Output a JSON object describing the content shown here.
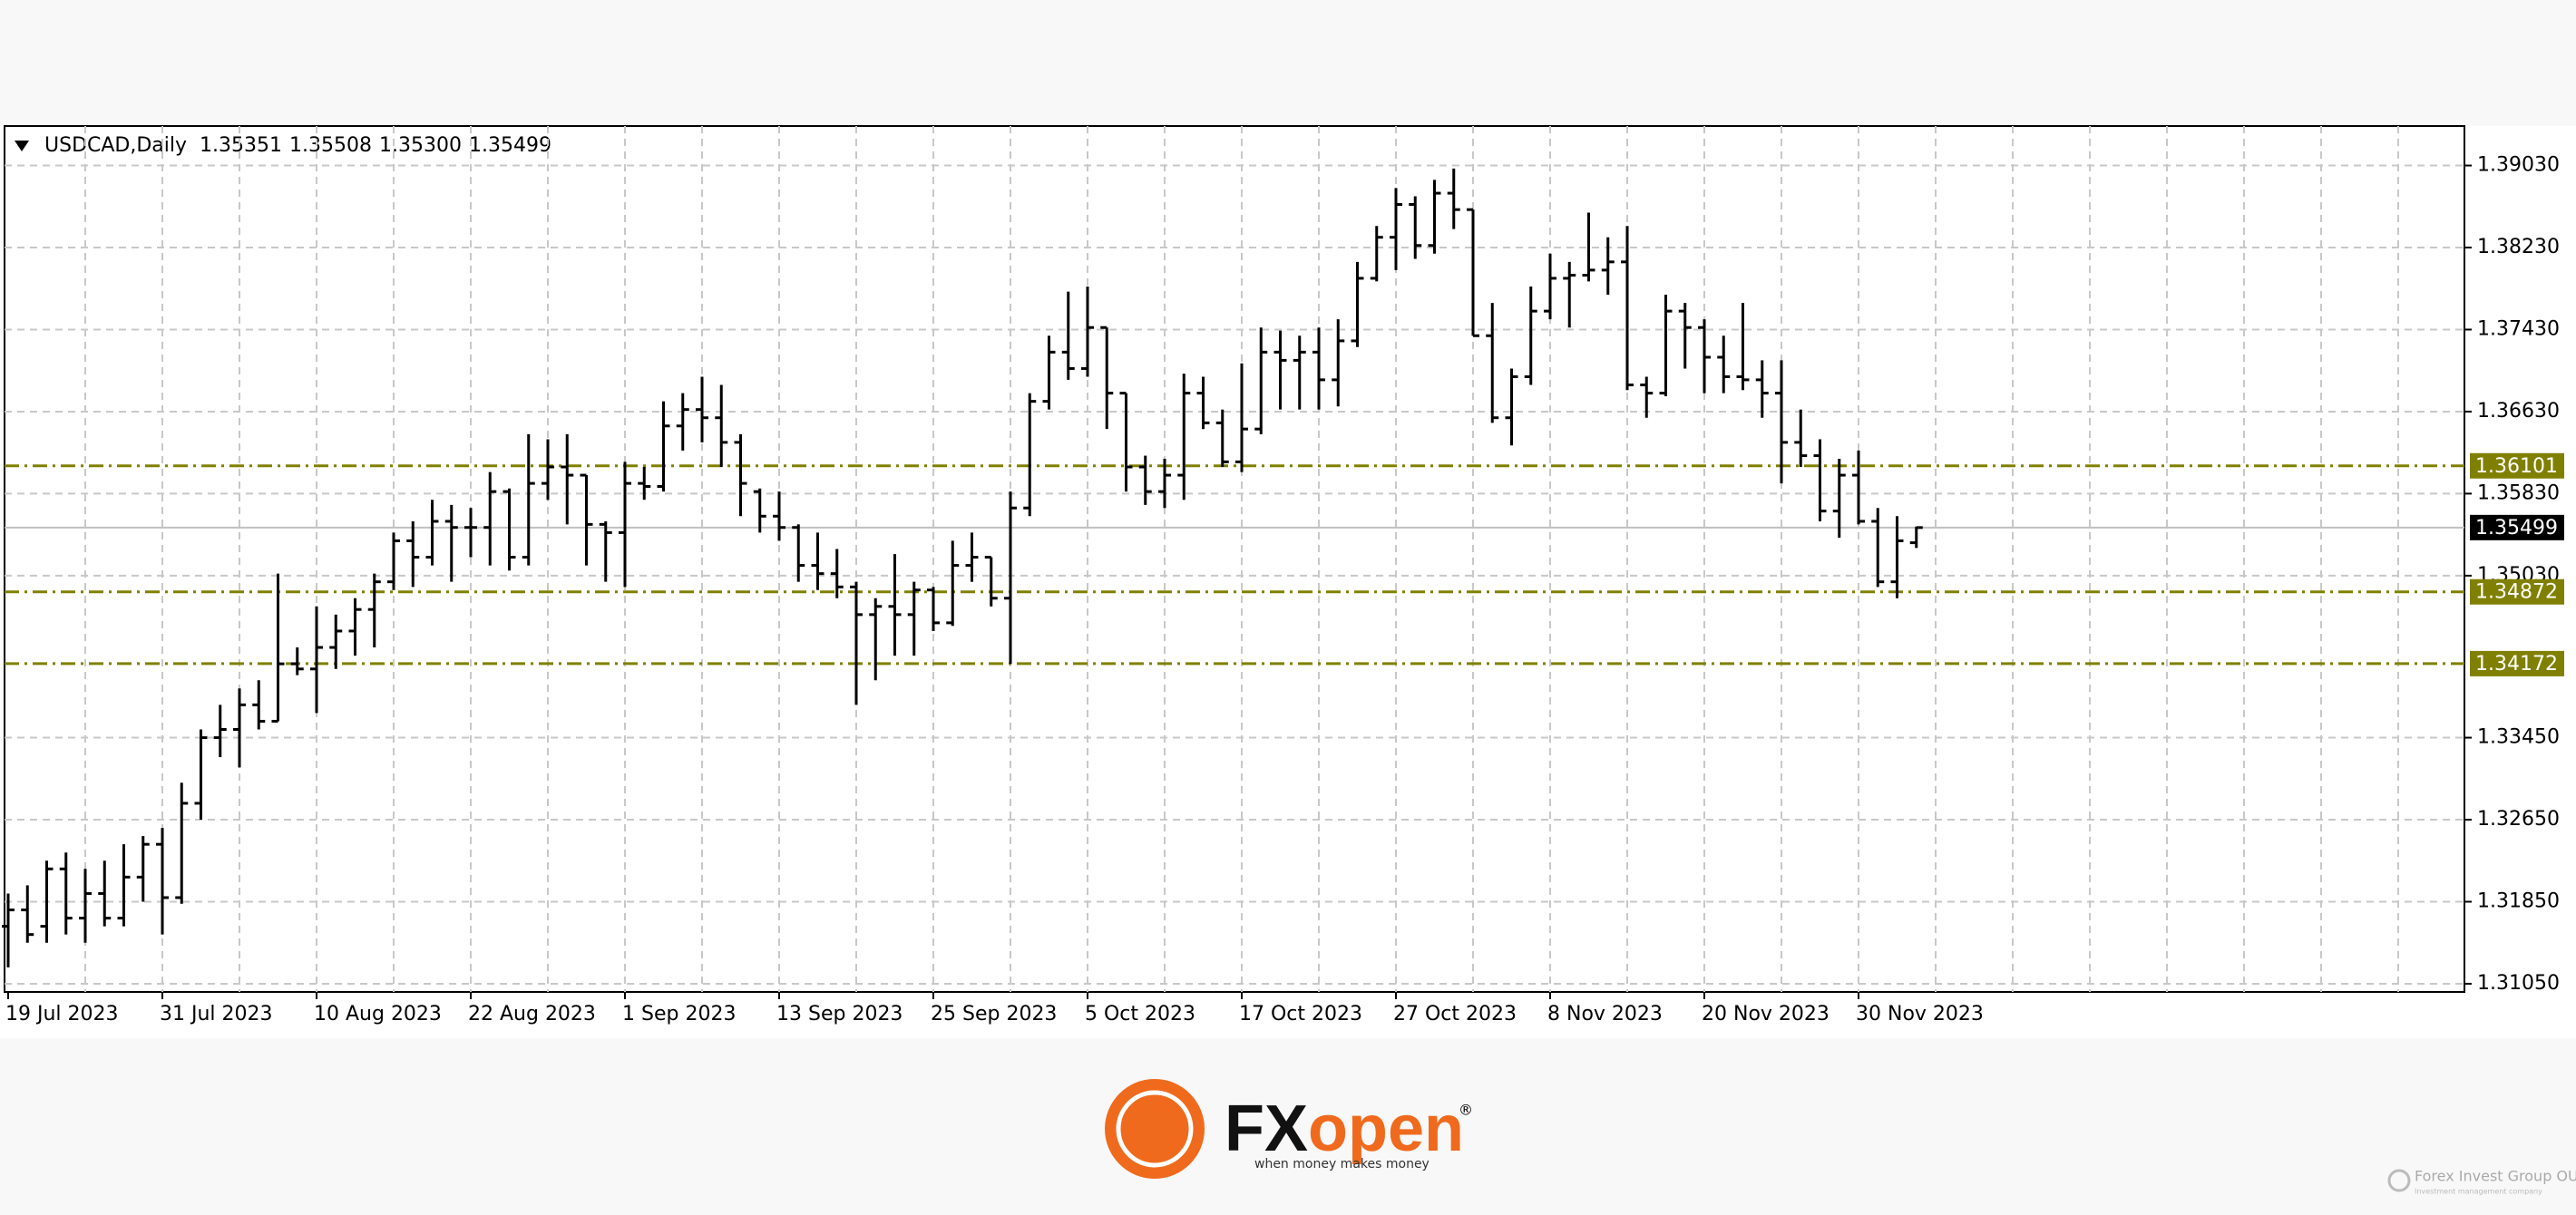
{
  "chart_data": {
    "type": "ohlc",
    "title": "USDCAD,Daily",
    "last_labels": [
      "1.35351",
      "1.35508",
      "1.35300",
      "1.35499"
    ],
    "categories": [
      "19 Jul 2023",
      null,
      null,
      null,
      null,
      null,
      null,
      null,
      "31 Jul 2023",
      null,
      null,
      null,
      null,
      null,
      null,
      null,
      "10 Aug 2023",
      null,
      null,
      null,
      null,
      null,
      null,
      null,
      "22 Aug 2023",
      null,
      null,
      null,
      null,
      null,
      null,
      null,
      "1 Sep 2023",
      null,
      null,
      null,
      null,
      null,
      null,
      null,
      "13 Sep 2023",
      null,
      null,
      null,
      null,
      null,
      null,
      null,
      "25 Sep 2023",
      null,
      null,
      null,
      null,
      null,
      null,
      null,
      "5 Oct 2023",
      null,
      null,
      null,
      null,
      null,
      null,
      null,
      "17 Oct 2023",
      null,
      null,
      null,
      null,
      null,
      null,
      null,
      "27 Oct 2023",
      null,
      null,
      null,
      null,
      null,
      null,
      null,
      "8 Nov 2023",
      null,
      null,
      null,
      null,
      null,
      null,
      null,
      "20 Nov 2023",
      null,
      null,
      null,
      null,
      null,
      null,
      null,
      "30 Nov 2023",
      null,
      null,
      null
    ],
    "ohlc": [
      [
        1.3161,
        1.3193,
        1.3121,
        1.3177
      ],
      [
        1.3177,
        1.3201,
        1.3145,
        1.3153
      ],
      [
        1.3161,
        1.3225,
        1.3145,
        1.3217
      ],
      [
        1.3217,
        1.3233,
        1.3153,
        1.3169
      ],
      [
        1.3169,
        1.3217,
        1.3145,
        1.3193
      ],
      [
        1.3193,
        1.3225,
        1.3161,
        1.3169
      ],
      [
        1.3169,
        1.3241,
        1.3161,
        1.3209
      ],
      [
        1.3209,
        1.3249,
        1.3185,
        1.3241
      ],
      [
        1.3241,
        1.3257,
        1.3153,
        1.3189
      ],
      [
        1.3189,
        1.3301,
        1.3183,
        1.3281
      ],
      [
        1.3281,
        1.3353,
        1.3265,
        1.3345
      ],
      [
        1.3345,
        1.3377,
        1.3326,
        1.3353
      ],
      [
        1.3353,
        1.3393,
        1.3316,
        1.3377
      ],
      [
        1.3377,
        1.3401,
        1.3353,
        1.3361
      ],
      [
        1.3361,
        1.3505,
        1.3361,
        1.3417
      ],
      [
        1.3417,
        1.3433,
        1.3406,
        1.3412
      ],
      [
        1.3412,
        1.3473,
        1.3369,
        1.3433
      ],
      [
        1.3433,
        1.3465,
        1.3412,
        1.3449
      ],
      [
        1.3449,
        1.3481,
        1.3425,
        1.347
      ],
      [
        1.347,
        1.3505,
        1.3433,
        1.3497
      ],
      [
        1.3497,
        1.3545,
        1.3489,
        1.3537
      ],
      [
        1.3537,
        1.3556,
        1.3492,
        1.3521
      ],
      [
        1.3521,
        1.3577,
        1.3513,
        1.3556
      ],
      [
        1.3556,
        1.3572,
        1.3497,
        1.355
      ],
      [
        1.355,
        1.3569,
        1.3521,
        1.355
      ],
      [
        1.355,
        1.3604,
        1.3513,
        1.3585
      ],
      [
        1.3585,
        1.3588,
        1.3508,
        1.3521
      ],
      [
        1.3521,
        1.3641,
        1.3513,
        1.3593
      ],
      [
        1.3593,
        1.3636,
        1.3577,
        1.3609
      ],
      [
        1.3609,
        1.3641,
        1.3553,
        1.3601
      ],
      [
        1.3601,
        1.3601,
        1.3513,
        1.3553
      ],
      [
        1.3553,
        1.3556,
        1.3497,
        1.3545
      ],
      [
        1.3545,
        1.3614,
        1.3492,
        1.3593
      ],
      [
        1.3593,
        1.3609,
        1.3577,
        1.359
      ],
      [
        1.359,
        1.3673,
        1.3585,
        1.3649
      ],
      [
        1.3649,
        1.3681,
        1.3625,
        1.3665
      ],
      [
        1.3665,
        1.3697,
        1.3633,
        1.3657
      ],
      [
        1.3657,
        1.3689,
        1.3609,
        1.3633
      ],
      [
        1.3633,
        1.3641,
        1.3561,
        1.3593
      ],
      [
        1.3585,
        1.3588,
        1.3545,
        1.3561
      ],
      [
        1.3561,
        1.3585,
        1.3537,
        1.355
      ],
      [
        1.355,
        1.3553,
        1.3497,
        1.3513
      ],
      [
        1.3513,
        1.3545,
        1.3489,
        1.3505
      ],
      [
        1.3505,
        1.3529,
        1.3481,
        1.3492
      ],
      [
        1.3492,
        1.3497,
        1.3377,
        1.3465
      ],
      [
        1.3465,
        1.3481,
        1.3401,
        1.3473
      ],
      [
        1.3473,
        1.3524,
        1.3425,
        1.3465
      ],
      [
        1.3465,
        1.3497,
        1.3425,
        1.3489
      ],
      [
        1.3489,
        1.3492,
        1.3449,
        1.3457
      ],
      [
        1.3457,
        1.3537,
        1.3454,
        1.3513
      ],
      [
        1.3513,
        1.3545,
        1.3497,
        1.3521
      ],
      [
        1.3521,
        1.3521,
        1.3473,
        1.3481
      ],
      [
        1.3481,
        1.3585,
        1.3417,
        1.3569
      ],
      [
        1.3569,
        1.3681,
        1.3561,
        1.3673
      ],
      [
        1.3673,
        1.3737,
        1.3665,
        1.3721
      ],
      [
        1.3721,
        1.378,
        1.3694,
        1.3705
      ],
      [
        1.3705,
        1.3785,
        1.3697,
        1.3745
      ],
      [
        1.3745,
        1.3745,
        1.3646,
        1.3681
      ],
      [
        1.3681,
        1.3681,
        1.3585,
        1.3609
      ],
      [
        1.3609,
        1.362,
        1.3572,
        1.3585
      ],
      [
        1.3585,
        1.3617,
        1.3569,
        1.3601
      ],
      [
        1.3601,
        1.37,
        1.3577,
        1.3681
      ],
      [
        1.3681,
        1.3697,
        1.3646,
        1.3652
      ],
      [
        1.3652,
        1.3665,
        1.3609,
        1.3614
      ],
      [
        1.3614,
        1.371,
        1.3604,
        1.3646
      ],
      [
        1.3646,
        1.3745,
        1.3641,
        1.3721
      ],
      [
        1.3721,
        1.3742,
        1.3665,
        1.3713
      ],
      [
        1.3713,
        1.3737,
        1.3665,
        1.3721
      ],
      [
        1.3721,
        1.3745,
        1.3665,
        1.3694
      ],
      [
        1.3694,
        1.3753,
        1.3668,
        1.3732
      ],
      [
        1.3732,
        1.3809,
        1.3726,
        1.3793
      ],
      [
        1.3793,
        1.3844,
        1.379,
        1.3833
      ],
      [
        1.3833,
        1.3881,
        1.3801,
        1.3865
      ],
      [
        1.3865,
        1.3873,
        1.3812,
        1.3825
      ],
      [
        1.3825,
        1.3889,
        1.3817,
        1.3876
      ],
      [
        1.3876,
        1.39,
        1.3841,
        1.386
      ],
      [
        1.386,
        1.386,
        1.3737,
        1.3737
      ],
      [
        1.3737,
        1.3769,
        1.3652,
        1.3657
      ],
      [
        1.3657,
        1.3705,
        1.363,
        1.3697
      ],
      [
        1.3697,
        1.3785,
        1.3689,
        1.3761
      ],
      [
        1.3761,
        1.3817,
        1.3753,
        1.3793
      ],
      [
        1.3793,
        1.3809,
        1.3745,
        1.3796
      ],
      [
        1.3796,
        1.3857,
        1.379,
        1.3801
      ],
      [
        1.3801,
        1.3833,
        1.3777,
        1.3809
      ],
      [
        1.3809,
        1.3844,
        1.3684,
        1.3689
      ],
      [
        1.3689,
        1.3697,
        1.3657,
        1.3681
      ],
      [
        1.3681,
        1.3777,
        1.3678,
        1.3761
      ],
      [
        1.3761,
        1.3769,
        1.3705,
        1.3745
      ],
      [
        1.3745,
        1.3753,
        1.3681,
        1.3716
      ],
      [
        1.3716,
        1.3737,
        1.3681,
        1.3697
      ],
      [
        1.3697,
        1.3769,
        1.3684,
        1.3694
      ],
      [
        1.3694,
        1.3713,
        1.3657,
        1.3681
      ],
      [
        1.3681,
        1.3713,
        1.3593,
        1.3633
      ],
      [
        1.3633,
        1.3665,
        1.3609,
        1.362
      ],
      [
        1.362,
        1.3636,
        1.3556,
        1.3566
      ],
      [
        1.3566,
        1.3617,
        1.354,
        1.3601
      ],
      [
        1.3601,
        1.3625,
        1.3553,
        1.3556
      ],
      [
        1.3556,
        1.3569,
        1.3492,
        1.3497
      ],
      [
        1.3497,
        1.3561,
        1.3481,
        1.3537
      ],
      [
        1.35351,
        1.35508,
        1.353,
        1.35499
      ]
    ],
    "color": "#000000",
    "levels": [
      1.36101,
      1.34872,
      1.34172
    ],
    "level_color": "#808000",
    "ylim": [
      1.3097,
      1.39415
    ],
    "yticks": [
      {
        "value": 1.3903,
        "label": "1.39030"
      },
      {
        "value": 1.3823,
        "label": "1.38230"
      },
      {
        "value": 1.3743,
        "label": "1.37430"
      },
      {
        "value": 1.3663,
        "label": "1.36630"
      },
      {
        "value": 1.3583,
        "label": "1.35830"
      },
      {
        "value": 1.3503,
        "label": "1.35030"
      },
      {
        "value": 1.3345,
        "label": "1.33450"
      },
      {
        "value": 1.3265,
        "label": "1.32650"
      },
      {
        "value": 1.3185,
        "label": "1.31850"
      },
      {
        "value": 1.3105,
        "label": "1.31050"
      }
    ],
    "grid": true
  },
  "footer": {
    "brand_fx": "FX",
    "brand_open": "open",
    "registered": "®",
    "tagline": "when money makes money",
    "company": "Forex Invest Group OU",
    "company_sub": "Investment management company"
  }
}
